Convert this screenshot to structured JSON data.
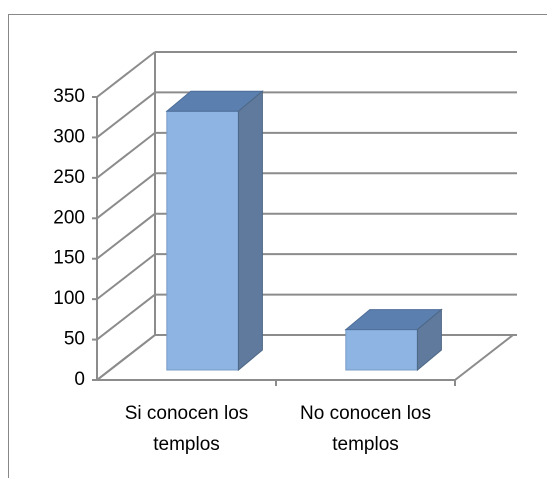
{
  "chart_data": {
    "type": "bar3d",
    "categories": [
      "Si conocen los templos",
      "No conocen los templos"
    ],
    "values": [
      320,
      50
    ],
    "color": "#8db4e2",
    "ylim": [
      0,
      350
    ],
    "yticks": [
      0,
      50,
      100,
      150,
      200,
      250,
      300,
      350
    ],
    "grid": true
  }
}
